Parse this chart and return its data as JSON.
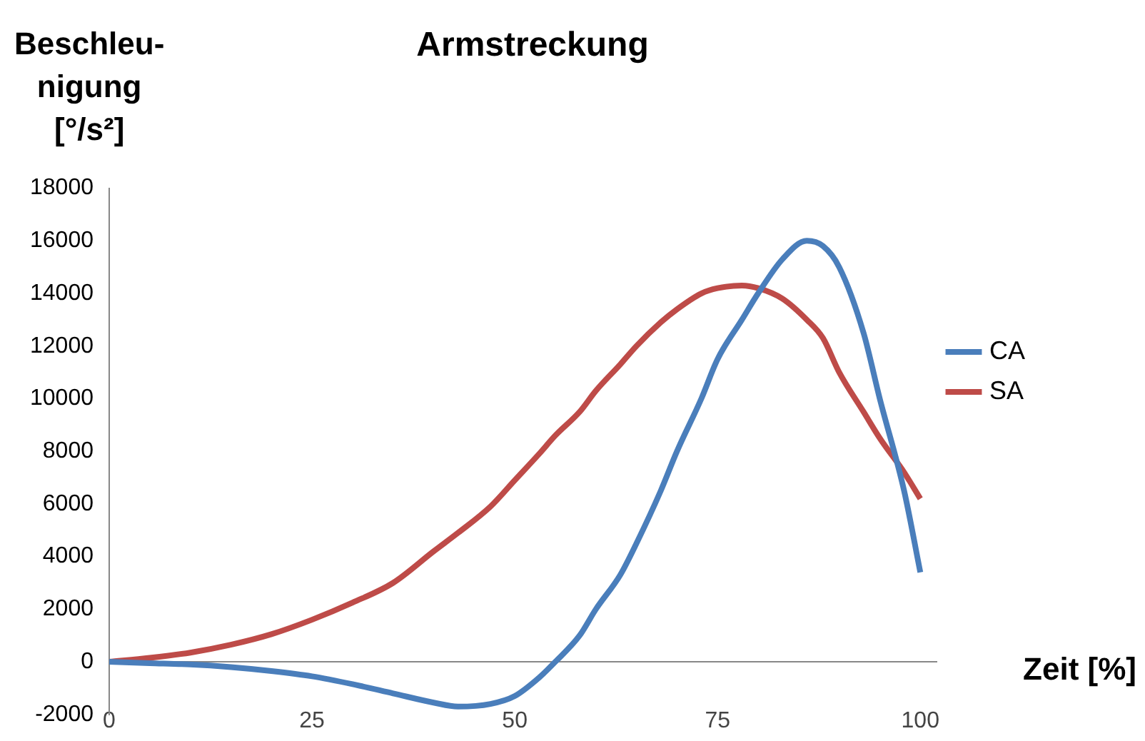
{
  "chart_data": {
    "type": "line",
    "title": "Armstreckung",
    "xlabel": "Zeit [%]",
    "ylabel": "Beschleu-\nnigung\n[°/s²]",
    "x": [
      0,
      5,
      10,
      15,
      20,
      25,
      30,
      35,
      40,
      43,
      47,
      50,
      53,
      55,
      58,
      60,
      63,
      65,
      68,
      70,
      73,
      75,
      78,
      80,
      83,
      86,
      88,
      90,
      93,
      95,
      98,
      100
    ],
    "series": [
      {
        "name": "CA",
        "color": "#4a7ebb",
        "values": [
          0,
          -50,
          -100,
          -200,
          -350,
          -550,
          -850,
          -1200,
          -1550,
          -1700,
          -1600,
          -1300,
          -600,
          0,
          1000,
          2000,
          3300,
          4500,
          6500,
          8000,
          10000,
          11500,
          13000,
          14000,
          15300,
          16000,
          15800,
          15000,
          12500,
          10000,
          6500,
          3400
        ]
      },
      {
        "name": "SA",
        "color": "#be4b48",
        "values": [
          0,
          150,
          350,
          650,
          1050,
          1600,
          2250,
          3000,
          4200,
          4900,
          5900,
          6900,
          7900,
          8600,
          9500,
          10300,
          11300,
          12000,
          12900,
          13400,
          14000,
          14200,
          14300,
          14200,
          13800,
          13000,
          12300,
          11000,
          9500,
          8500,
          7200,
          6200
        ]
      }
    ],
    "xlim": [
      0,
      102
    ],
    "xticks": [
      0,
      25,
      50,
      75,
      100
    ],
    "ylim": [
      -2000,
      18000
    ],
    "yticks": [
      -2000,
      0,
      2000,
      4000,
      6000,
      8000,
      10000,
      12000,
      14000,
      16000,
      18000
    ],
    "grid": false,
    "legend": "right",
    "marker": "none",
    "line_style": "solid"
  }
}
